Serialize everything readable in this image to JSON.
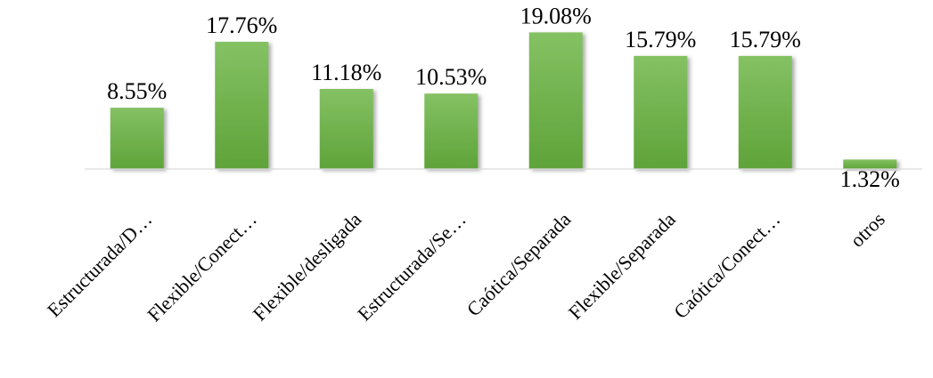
{
  "chart_data": {
    "type": "bar",
    "title": "",
    "xlabel": "",
    "ylabel": "",
    "categories": [
      "Estructurada/D…",
      "Flexible/Conect…",
      "Flexible/desligada",
      "Estructurada/Se…",
      "Caótica/Separada",
      "Flexible/Separada",
      "Caótica/Conect…",
      "otros"
    ],
    "values": [
      8.55,
      17.76,
      11.18,
      10.53,
      19.08,
      15.79,
      15.79,
      1.32
    ],
    "data_labels": [
      "8.55%",
      "17.76%",
      "11.18%",
      "10.53%",
      "19.08%",
      "15.79%",
      "15.79%",
      "1.32%"
    ],
    "ylim": [
      0,
      20
    ],
    "grid": false,
    "legend": "none",
    "colors": {
      "bar_top": "#84c163",
      "bar_bottom": "#5fa339",
      "bar_shadow": "#6a6a6a",
      "axis": "#d9d9d9",
      "text": "#000000"
    }
  }
}
